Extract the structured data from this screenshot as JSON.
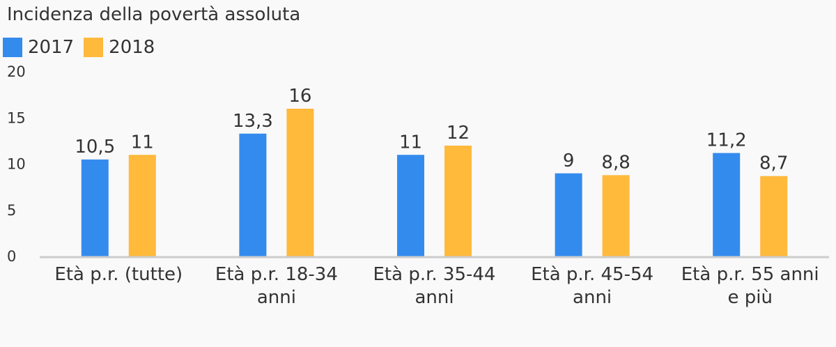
{
  "chart_data": {
    "type": "bar",
    "title": "Incidenza della povertà assoluta",
    "categories": [
      [
        "Età p.r. (tutte)"
      ],
      [
        "Età p.r. 18-34",
        "anni"
      ],
      [
        "Età p.r. 35-44",
        "anni"
      ],
      [
        "Età p.r. 45-54",
        "anni"
      ],
      [
        "Età p.r. 55 anni",
        "e più"
      ]
    ],
    "series": [
      {
        "name": "2017",
        "color": "#348bee",
        "values": [
          10.5,
          13.3,
          11,
          9,
          11.2
        ],
        "labels": [
          "10,5",
          "13,3",
          "11",
          "9",
          "11,2"
        ]
      },
      {
        "name": "2018",
        "color": "#ffb93b",
        "values": [
          11,
          16,
          12,
          8.8,
          8.7
        ],
        "labels": [
          "11",
          "16",
          "12",
          "8,8",
          "8,7"
        ]
      }
    ],
    "ylim": [
      0,
      20
    ],
    "yticks": [
      0,
      5,
      10,
      15,
      20
    ],
    "xlabel": "",
    "ylabel": "",
    "grid": false,
    "legend_position": "top-left"
  }
}
